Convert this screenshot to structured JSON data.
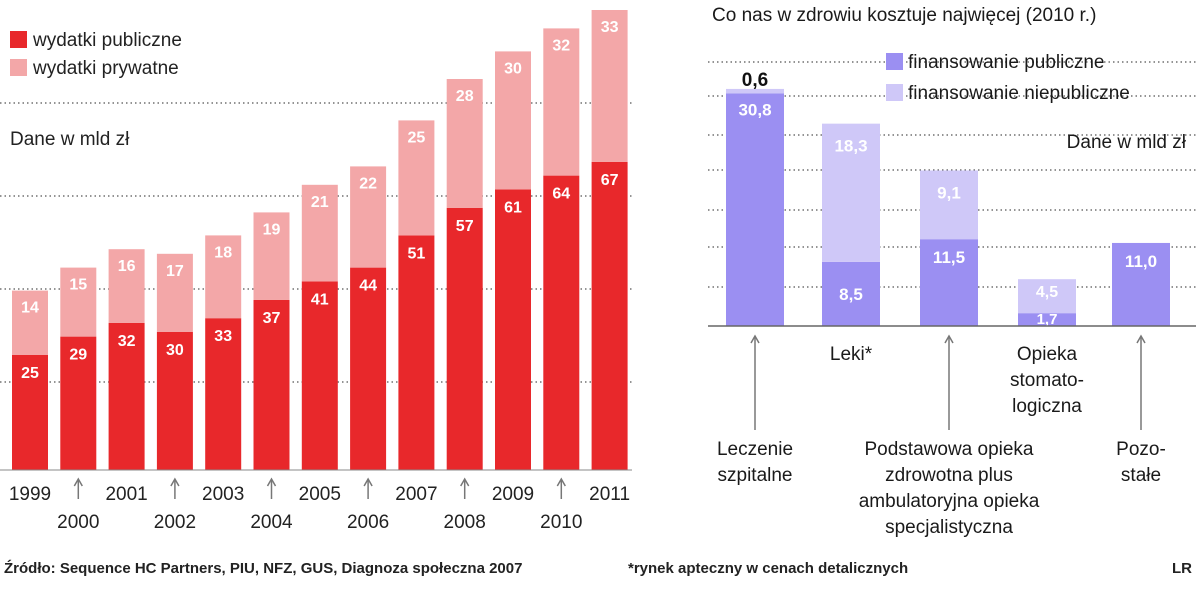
{
  "chart_data": [
    {
      "type": "bar",
      "stacked": true,
      "categories": [
        "1999",
        "2000",
        "2001",
        "2002",
        "2003",
        "2004",
        "2005",
        "2006",
        "2007",
        "2008",
        "2009",
        "2010",
        "2011"
      ],
      "series": [
        {
          "name": "wydatki publiczne",
          "values": [
            25,
            29,
            32,
            30,
            33,
            37,
            41,
            44,
            51,
            57,
            61,
            64,
            67
          ]
        },
        {
          "name": "wydatki prywatne",
          "values": [
            14,
            15,
            16,
            17,
            18,
            19,
            21,
            22,
            25,
            28,
            30,
            32,
            33
          ]
        }
      ],
      "unit_note": "Dane w mld zł",
      "ylim": [
        0,
        100
      ],
      "grid": true,
      "legend": "top-left",
      "colors": {
        "public": "#e8282b",
        "private": "#f3a7a8"
      }
    },
    {
      "type": "bar",
      "stacked": true,
      "title": "Co nas w zdrowiu kosztuje najwięcej (2010 r.)",
      "categories": [
        "Leczenie szpitalne",
        "Leki*",
        "Podstawowa opieka zdrowotna plus ambulatoryjna opieka specjalistyczna",
        "Opieka stomatologiczna",
        "Pozostałe"
      ],
      "category_labels": [
        {
          "lines": [
            "Leczenie",
            "szpitalne"
          ]
        },
        {
          "lines": [
            "Leki*"
          ]
        },
        {
          "lines": [
            "Podstawowa opieka",
            "zdrowotna plus",
            "ambulatoryjna opieka",
            "specjalistyczna"
          ]
        },
        {
          "lines": [
            "Opieka",
            "stomato-",
            "logiczna"
          ]
        },
        {
          "lines": [
            "Pozo-",
            "stałe"
          ]
        }
      ],
      "series": [
        {
          "name": "finansowanie publiczne",
          "values": [
            30.8,
            8.5,
            11.5,
            1.7,
            11.0
          ],
          "labels": [
            "30,8",
            "8,5",
            "11,5",
            "1,7",
            "11,0"
          ]
        },
        {
          "name": "finansowanie niepubliczne",
          "values": [
            0.6,
            18.3,
            9.1,
            4.5,
            0
          ],
          "labels": [
            "0,6",
            "18,3",
            "9,1",
            "4,5",
            ""
          ]
        }
      ],
      "unit_note": "Dane w mld zł",
      "ylim": [
        0,
        32
      ],
      "grid": true,
      "legend": "top-right",
      "colors": {
        "public": "#9b8ff2",
        "nonpublic": "#cfc8f8"
      }
    }
  ],
  "footer": {
    "source": "Źródło: Sequence HC Partners, PIU, NFZ, GUS, Diagnoza społeczna 2007",
    "note": "*rynek apteczny w cenach detalicznych",
    "credit": "LR"
  }
}
